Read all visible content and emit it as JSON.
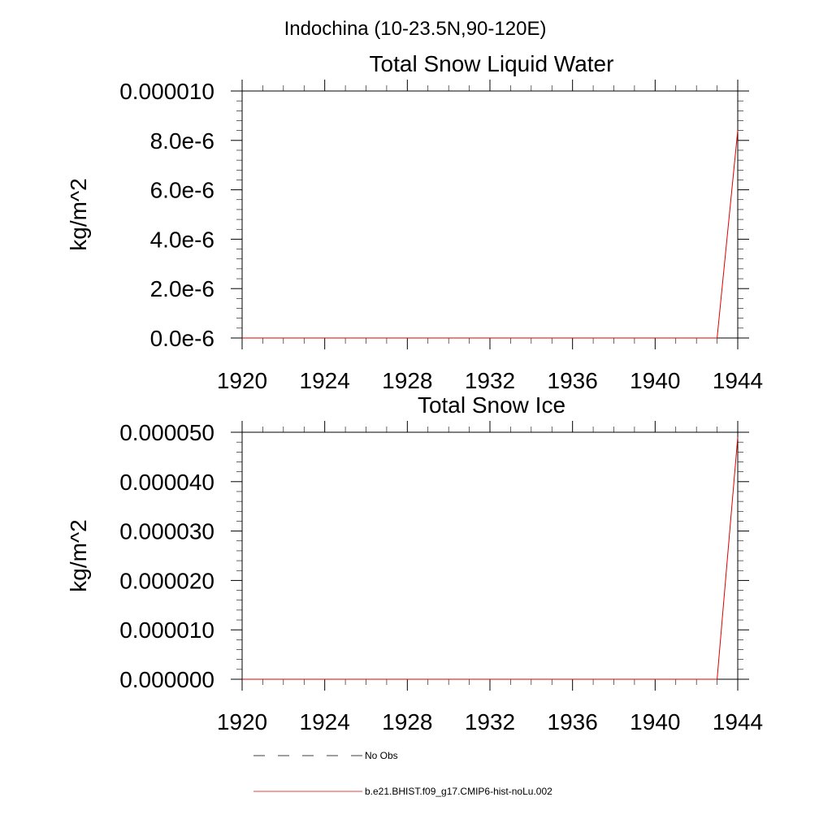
{
  "page_title": "Indochina (10-23.5N,90-120E)",
  "chart_data": [
    {
      "type": "line",
      "title": "Total Snow Liquid Water",
      "ylabel": "kg/m^2",
      "xlabel": "",
      "xlim": [
        1920,
        1944
      ],
      "ylim": [
        0,
        1e-05
      ],
      "xticks": [
        1920,
        1924,
        1928,
        1932,
        1936,
        1940,
        1944
      ],
      "xtick_labels": [
        "1920",
        "1924",
        "1928",
        "1932",
        "1936",
        "1940",
        "1944"
      ],
      "yticks": [
        0,
        2e-06,
        4e-06,
        6e-06,
        8e-06,
        1e-05
      ],
      "ytick_labels": [
        "0.0e-6",
        "2.0e-6",
        "4.0e-6",
        "6.0e-6",
        "8.0e-6",
        "0.000010"
      ],
      "series": [
        {
          "name": "b.e21.BHIST.f09_g17.CMIP6-hist-noLu.002",
          "color": "#e00000",
          "x": [
            1920,
            1943,
            1944
          ],
          "y": [
            0,
            0,
            8.4e-06
          ]
        }
      ]
    },
    {
      "type": "line",
      "title": "Total Snow Ice",
      "ylabel": "kg/m^2",
      "xlabel": "",
      "xlim": [
        1920,
        1944
      ],
      "ylim": [
        0,
        5e-05
      ],
      "xticks": [
        1920,
        1924,
        1928,
        1932,
        1936,
        1940,
        1944
      ],
      "xtick_labels": [
        "1920",
        "1924",
        "1928",
        "1932",
        "1936",
        "1940",
        "1944"
      ],
      "yticks": [
        0,
        1e-05,
        2e-05,
        3e-05,
        4e-05,
        5e-05
      ],
      "ytick_labels": [
        "0.000000",
        "0.000010",
        "0.000020",
        "0.000030",
        "0.000040",
        "0.000050"
      ],
      "series": [
        {
          "name": "b.e21.BHIST.f09_g17.CMIP6-hist-noLu.002",
          "color": "#e00000",
          "x": [
            1920,
            1943,
            1944
          ],
          "y": [
            0,
            0,
            4.9e-05
          ]
        }
      ]
    }
  ],
  "legend": {
    "placement": "bottom",
    "entries": [
      {
        "label": "No Obs",
        "style": "dashed",
        "color": "#000000"
      },
      {
        "label": "b.e21.BHIST.f09_g17.CMIP6-hist-noLu.002",
        "style": "solid",
        "color": "#e00000"
      }
    ]
  }
}
